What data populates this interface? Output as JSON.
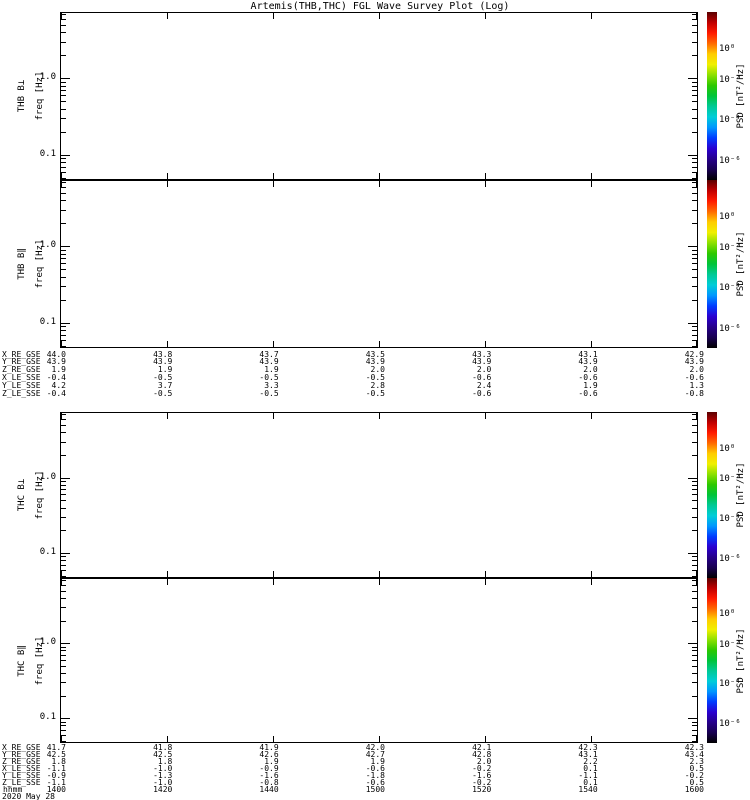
{
  "chart_data": {
    "type": "heatmap",
    "subtype": "wave-survey-spectrogram-grid",
    "title": "Artemis(THB,THC) FGL Wave Survey Plot (Log)",
    "panels": [
      {
        "name": "THB B⊥",
        "ylabel": "freq [Hz]",
        "data": "blank (no spectral data rendered)"
      },
      {
        "name": "THB B∥",
        "ylabel": "freq [Hz]",
        "data": "blank (no spectral data rendered)"
      },
      {
        "name": "THC B⊥",
        "ylabel": "freq [Hz]",
        "data": "blank (no spectral data rendered)"
      },
      {
        "name": "THC B∥",
        "ylabel": "freq [Hz]",
        "data": "blank (no spectral data rendered)"
      }
    ],
    "freq_axis": {
      "scale": "log",
      "tick_labels": [
        "1.0",
        "0.1"
      ],
      "tick_values_hz": [
        1.0,
        0.1
      ],
      "approx_range_hz": [
        0.05,
        7.2
      ]
    },
    "time_axis": {
      "label": "hhmm",
      "tick_labels": [
        "1400",
        "1420",
        "1440",
        "1500",
        "1520",
        "1540",
        "1600"
      ],
      "date": "2020 May 28"
    },
    "colorbar": {
      "label": "PSD [nT²/Hz]",
      "tick_labels": [
        "10⁰",
        "10⁻²",
        "10⁻⁴",
        "10⁻⁶"
      ],
      "gradient_top_to_bottom": [
        "#5a0000",
        "#c00000",
        "#ff1a00",
        "#ff6a00",
        "#ffcc00",
        "#f0f000",
        "#8ce000",
        "#2cc800",
        "#00c43a",
        "#00c996",
        "#00cdd8",
        "#0096ff",
        "#003cff",
        "#2a00d0",
        "#26008a",
        "#180050",
        "#000000"
      ]
    },
    "ephemeris_thb": {
      "rows": [
        {
          "label": "X_RE_GSE",
          "values": [
            "44.0",
            "43.8",
            "43.7",
            "43.5",
            "43.3",
            "43.1",
            "42.9"
          ]
        },
        {
          "label": "Y_RE_GSE",
          "values": [
            "43.9",
            "43.9",
            "43.9",
            "43.9",
            "43.9",
            "43.9",
            "43.9"
          ]
        },
        {
          "label": "Z_RE_GSE",
          "values": [
            "1.9",
            "1.9",
            "1.9",
            "2.0",
            "2.0",
            "2.0",
            "2.0"
          ]
        },
        {
          "label": "X_LE_SSE",
          "values": [
            "-0.4",
            "-0.5",
            "-0.5",
            "-0.5",
            "-0.6",
            "-0.6",
            "-0.6"
          ]
        },
        {
          "label": "Y_LE_SSE",
          "values": [
            "4.2",
            "3.7",
            "3.3",
            "2.8",
            "2.4",
            "1.9",
            "1.3"
          ]
        },
        {
          "label": "Z_LE_SSE",
          "values": [
            "-0.4",
            "-0.5",
            "-0.5",
            "-0.5",
            "-0.6",
            "-0.6",
            "-0.8"
          ]
        }
      ]
    },
    "ephemeris_thc": {
      "rows": [
        {
          "label": "X_RE_GSE",
          "values": [
            "41.7",
            "41.8",
            "41.9",
            "42.0",
            "42.1",
            "42.3",
            "42.3"
          ]
        },
        {
          "label": "Y_RE_GSE",
          "values": [
            "42.5",
            "42.5",
            "42.6",
            "42.7",
            "42.8",
            "43.1",
            "43.4"
          ]
        },
        {
          "label": "Z_RE_GSE",
          "values": [
            "1.8",
            "1.8",
            "1.9",
            "1.9",
            "2.0",
            "2.2",
            "2.3"
          ]
        },
        {
          "label": "X_LE_SSE",
          "values": [
            "-1.1",
            "-1.0",
            "-0.9",
            "-0.6",
            "-0.2",
            "0.1",
            "0.5"
          ]
        },
        {
          "label": "Y_LE_SSE",
          "values": [
            "-0.9",
            "-1.3",
            "-1.6",
            "-1.8",
            "-1.6",
            "-1.1",
            "-0.2"
          ]
        },
        {
          "label": "Z_LE_SSE",
          "values": [
            "-1.1",
            "-1.0",
            "-0.8",
            "-0.6",
            "-0.2",
            "0.1",
            "0.5"
          ]
        }
      ]
    }
  }
}
